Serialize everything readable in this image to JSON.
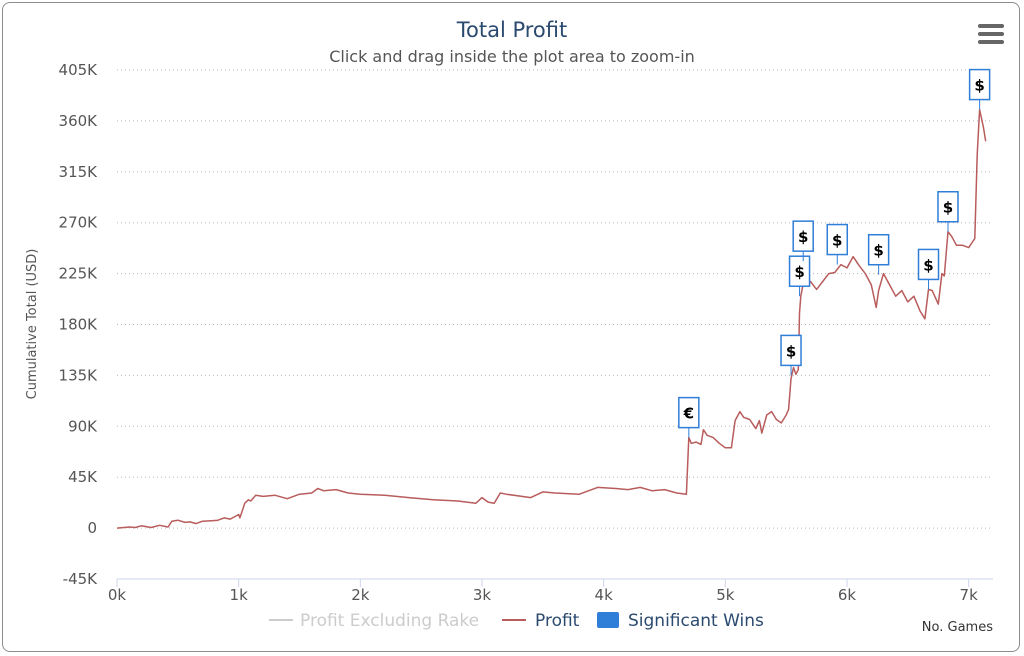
{
  "chart_data": {
    "type": "line",
    "title": "Total Profit",
    "subtitle": "Click and drag inside the plot area to zoom-in",
    "ylabel": "Cumulative Total (USD)",
    "xlabel": "No. Games",
    "xlim": [
      0,
      7200
    ],
    "ylim": [
      -45000,
      405000
    ],
    "x_ticks": [
      {
        "value": 0,
        "label": "0k"
      },
      {
        "value": 1000,
        "label": "1k"
      },
      {
        "value": 2000,
        "label": "2k"
      },
      {
        "value": 3000,
        "label": "3k"
      },
      {
        "value": 4000,
        "label": "4k"
      },
      {
        "value": 5000,
        "label": "5k"
      },
      {
        "value": 6000,
        "label": "6k"
      },
      {
        "value": 7000,
        "label": "7k"
      }
    ],
    "y_ticks": [
      {
        "value": -45000,
        "label": "-45K"
      },
      {
        "value": 0,
        "label": "0"
      },
      {
        "value": 45000,
        "label": "45K"
      },
      {
        "value": 90000,
        "label": "90K"
      },
      {
        "value": 135000,
        "label": "135K"
      },
      {
        "value": 180000,
        "label": "180K"
      },
      {
        "value": 225000,
        "label": "225K"
      },
      {
        "value": 270000,
        "label": "270K"
      },
      {
        "value": 315000,
        "label": "315K"
      },
      {
        "value": 360000,
        "label": "360K"
      },
      {
        "value": 405000,
        "label": "405K"
      }
    ],
    "grid": "horizontal-dotted",
    "legend_position": "bottom",
    "legend": [
      {
        "name": "Profit Excluding Rake",
        "color": "#cccccc",
        "symbol": "line",
        "state": "hidden"
      },
      {
        "name": "Profit",
        "color": "#b85c5c",
        "symbol": "line",
        "state": "visible"
      },
      {
        "name": "Significant Wins",
        "color": "#2f7ed8",
        "symbol": "box",
        "state": "visible"
      }
    ],
    "series": [
      {
        "name": "Profit",
        "color": "#b85c5c",
        "points": [
          [
            0,
            0
          ],
          [
            100,
            1000
          ],
          [
            150,
            500
          ],
          [
            200,
            2000
          ],
          [
            280,
            500
          ],
          [
            350,
            2500
          ],
          [
            420,
            1000
          ],
          [
            450,
            6000
          ],
          [
            500,
            7000
          ],
          [
            560,
            5000
          ],
          [
            600,
            5500
          ],
          [
            650,
            4000
          ],
          [
            700,
            6000
          ],
          [
            780,
            6500
          ],
          [
            830,
            7000
          ],
          [
            880,
            9000
          ],
          [
            930,
            8000
          ],
          [
            1000,
            12000
          ],
          [
            1010,
            9000
          ],
          [
            1050,
            22000
          ],
          [
            1080,
            25000
          ],
          [
            1100,
            24000
          ],
          [
            1140,
            29000
          ],
          [
            1200,
            28000
          ],
          [
            1300,
            29000
          ],
          [
            1400,
            26000
          ],
          [
            1500,
            30000
          ],
          [
            1600,
            31000
          ],
          [
            1650,
            35000
          ],
          [
            1700,
            33000
          ],
          [
            1800,
            34000
          ],
          [
            1900,
            31000
          ],
          [
            2000,
            30000
          ],
          [
            2200,
            29000
          ],
          [
            2400,
            27000
          ],
          [
            2600,
            25000
          ],
          [
            2800,
            24000
          ],
          [
            2950,
            22000
          ],
          [
            3000,
            27000
          ],
          [
            3050,
            23000
          ],
          [
            3100,
            22000
          ],
          [
            3150,
            31000
          ],
          [
            3200,
            30000
          ],
          [
            3400,
            27000
          ],
          [
            3500,
            32000
          ],
          [
            3600,
            31000
          ],
          [
            3800,
            30000
          ],
          [
            3950,
            36000
          ],
          [
            4100,
            35000
          ],
          [
            4200,
            34000
          ],
          [
            4300,
            36000
          ],
          [
            4400,
            33000
          ],
          [
            4500,
            34000
          ],
          [
            4600,
            31000
          ],
          [
            4680,
            30000
          ],
          [
            4700,
            80000
          ],
          [
            4720,
            75000
          ],
          [
            4760,
            76000
          ],
          [
            4800,
            74000
          ],
          [
            4820,
            87000
          ],
          [
            4850,
            82000
          ],
          [
            4900,
            80000
          ],
          [
            4950,
            75000
          ],
          [
            5000,
            71000
          ],
          [
            5050,
            71000
          ],
          [
            5080,
            95000
          ],
          [
            5120,
            103000
          ],
          [
            5150,
            98000
          ],
          [
            5200,
            96000
          ],
          [
            5250,
            88000
          ],
          [
            5280,
            95000
          ],
          [
            5300,
            84000
          ],
          [
            5340,
            100000
          ],
          [
            5380,
            103000
          ],
          [
            5420,
            96000
          ],
          [
            5460,
            93000
          ],
          [
            5500,
            100000
          ],
          [
            5520,
            105000
          ],
          [
            5540,
            132000
          ],
          [
            5560,
            142000
          ],
          [
            5580,
            136000
          ],
          [
            5600,
            140000
          ],
          [
            5610,
            190000
          ],
          [
            5620,
            205000
          ],
          [
            5640,
            216000
          ],
          [
            5660,
            215000
          ],
          [
            5700,
            218000
          ],
          [
            5750,
            211000
          ],
          [
            5800,
            218000
          ],
          [
            5850,
            225000
          ],
          [
            5900,
            226000
          ],
          [
            5950,
            233000
          ],
          [
            6000,
            230000
          ],
          [
            6050,
            240000
          ],
          [
            6100,
            232000
          ],
          [
            6150,
            225000
          ],
          [
            6200,
            215000
          ],
          [
            6240,
            195000
          ],
          [
            6260,
            210000
          ],
          [
            6300,
            225000
          ],
          [
            6350,
            215000
          ],
          [
            6400,
            205000
          ],
          [
            6450,
            210000
          ],
          [
            6500,
            200000
          ],
          [
            6550,
            205000
          ],
          [
            6600,
            192000
          ],
          [
            6640,
            185000
          ],
          [
            6670,
            211000
          ],
          [
            6700,
            210000
          ],
          [
            6750,
            198000
          ],
          [
            6780,
            225000
          ],
          [
            6800,
            223000
          ],
          [
            6830,
            262000
          ],
          [
            6860,
            258000
          ],
          [
            6900,
            250000
          ],
          [
            6950,
            250000
          ],
          [
            7000,
            248000
          ],
          [
            7050,
            256000
          ],
          [
            7070,
            330000
          ],
          [
            7090,
            370000
          ],
          [
            7120,
            355000
          ],
          [
            7140,
            342000
          ]
        ]
      }
    ],
    "significant_wins": [
      {
        "x": 4700,
        "y": 80000,
        "label": "€"
      },
      {
        "x": 5540,
        "y": 135000,
        "label": "$"
      },
      {
        "x": 5610,
        "y": 205000,
        "label": "$"
      },
      {
        "x": 5640,
        "y": 236000,
        "label": "$"
      },
      {
        "x": 5920,
        "y": 233000,
        "label": "$"
      },
      {
        "x": 6260,
        "y": 224000,
        "label": "$"
      },
      {
        "x": 6670,
        "y": 211000,
        "label": "$"
      },
      {
        "x": 6830,
        "y": 262000,
        "label": "$"
      },
      {
        "x": 7090,
        "y": 370000,
        "label": "$"
      }
    ]
  }
}
